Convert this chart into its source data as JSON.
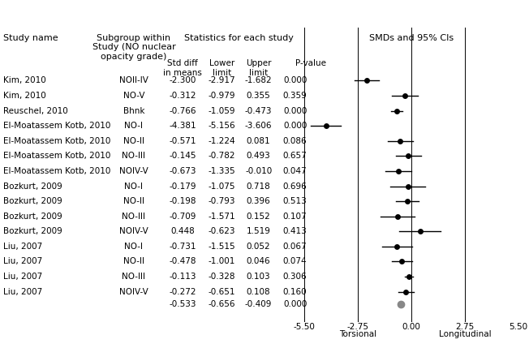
{
  "studies": [
    {
      "name": "Kim, 2010",
      "subgroup": "NOII-IV",
      "smd": -2.3,
      "lower": -2.917,
      "upper": -1.682,
      "pvalue": "0.000"
    },
    {
      "name": "Kim, 2010",
      "subgroup": "NO-V",
      "smd": -0.312,
      "lower": -0.979,
      "upper": 0.355,
      "pvalue": "0.359"
    },
    {
      "name": "Reuschel, 2010",
      "subgroup": "Bhnk",
      "smd": -0.766,
      "lower": -1.059,
      "upper": -0.473,
      "pvalue": "0.000"
    },
    {
      "name": "El-Moatassem Kotb, 2010",
      "subgroup": "NO-I",
      "smd": -4.381,
      "lower": -5.156,
      "upper": -3.606,
      "pvalue": "0.000"
    },
    {
      "name": "El-Moatassem Kotb, 2010",
      "subgroup": "NO-II",
      "smd": -0.571,
      "lower": -1.224,
      "upper": 0.081,
      "pvalue": "0.086"
    },
    {
      "name": "El-Moatassem Kotb, 2010",
      "subgroup": "NO-III",
      "smd": -0.145,
      "lower": -0.782,
      "upper": 0.493,
      "pvalue": "0.657"
    },
    {
      "name": "El-Moatassem Kotb, 2010",
      "subgroup": "NOIV-V",
      "smd": -0.673,
      "lower": -1.335,
      "upper": -0.01,
      "pvalue": "0.047"
    },
    {
      "name": "Bozkurt, 2009",
      "subgroup": "NO-I",
      "smd": -0.179,
      "lower": -1.075,
      "upper": 0.718,
      "pvalue": "0.696"
    },
    {
      "name": "Bozkurt, 2009",
      "subgroup": "NO-II",
      "smd": -0.198,
      "lower": -0.793,
      "upper": 0.396,
      "pvalue": "0.513"
    },
    {
      "name": "Bozkurt, 2009",
      "subgroup": "NO-III",
      "smd": -0.709,
      "lower": -1.571,
      "upper": 0.152,
      "pvalue": "0.107"
    },
    {
      "name": "Bozkurt, 2009",
      "subgroup": "NOIV-V",
      "smd": 0.448,
      "lower": -0.623,
      "upper": 1.519,
      "pvalue": "0.413"
    },
    {
      "name": "Liu, 2007",
      "subgroup": "NO-I",
      "smd": -0.731,
      "lower": -1.515,
      "upper": 0.052,
      "pvalue": "0.067"
    },
    {
      "name": "Liu, 2007",
      "subgroup": "NO-II",
      "smd": -0.478,
      "lower": -1.001,
      "upper": 0.046,
      "pvalue": "0.074"
    },
    {
      "name": "Liu, 2007",
      "subgroup": "NO-III",
      "smd": -0.113,
      "lower": -0.328,
      "upper": 0.103,
      "pvalue": "0.306"
    },
    {
      "name": "Liu, 2007",
      "subgroup": "NOIV-V",
      "smd": -0.272,
      "lower": -0.651,
      "upper": 0.108,
      "pvalue": "0.160"
    }
  ],
  "summary": {
    "smd": -0.533,
    "lower": -0.656,
    "upper": -0.409,
    "pvalue": "0.000"
  },
  "xmin": -5.5,
  "xmax": 5.5,
  "xtick_vals": [
    -5.5,
    -2.75,
    0.0,
    2.75,
    5.5
  ],
  "xtick_labels": [
    "-5.50",
    "-2.75",
    "0.00",
    "2.75",
    "5.50"
  ],
  "xlabel_left": "Torsional",
  "xlabel_right": "Longitudinal",
  "col_header_study": "Study name",
  "col_header_subgroup": "Subgroup within\nStudy (NO nuclear\nopacity grade)",
  "col_header_stats": "Statistics for each study",
  "col_header_smd_ci": "SMDs and 95% CIs",
  "col_sub_smd": "Std diff\nin means",
  "col_sub_lower": "Lower\nlimit",
  "col_sub_upper": "Upper\nlimit",
  "col_sub_pvalue": "P-value",
  "dot_color": "#000000",
  "summary_dot_color": "#888888",
  "ci_linewidth": 1.0,
  "dot_size": 5,
  "font_size": 7.5,
  "header_font_size": 8.0,
  "subheader_font_size": 7.5
}
